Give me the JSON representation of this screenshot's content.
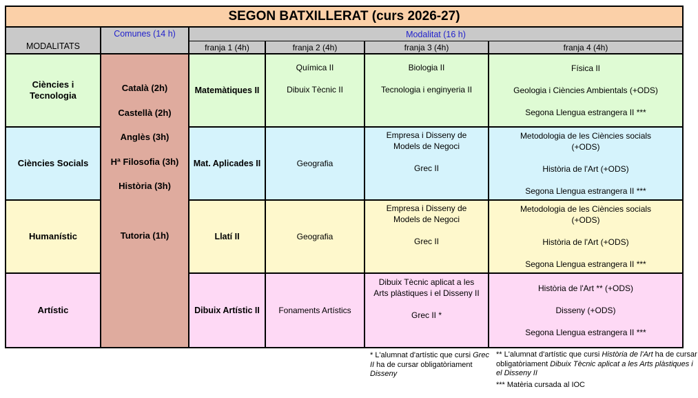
{
  "title": "SEGON BATXILLERAT (curs 2026-27)",
  "header": {
    "modalitats": "MODALITATS",
    "comunes": "Comunes (14 h)",
    "modalitat": "Modalitat (16 h)",
    "franges": [
      "franja 1 (4h)",
      "franja 2 (4h)",
      "franja 3 (4h)",
      "franja 4 (4h)"
    ]
  },
  "comunes_subjects": "Català (2h)\n\nCastellà (2h)\n\nAnglès (3h)\n\nHª Filosofia (3h)\n\nHistòria (3h)\n\n\n\nTutoria (1h)",
  "rows": [
    {
      "name": "Ciències i Tecnologia",
      "bg": "#DFFBD4",
      "franja1": "Matemàtiques II",
      "franja2": "Química II\n\nDibuix Tècnic II",
      "franja3": "Biologia II\n\nTecnologia i enginyeria II",
      "franja4": "Física II\n\nGeologia i Ciències Ambientals (+ODS)\n\nSegona Llengua estrangera II ***"
    },
    {
      "name": "Ciències Socials",
      "bg": "#D5F3FC",
      "franja1": "Mat. Aplicades II",
      "franja2": "Geografia",
      "franja3": "Empresa i Disseny de\nModels de Negoci\n\nGrec II",
      "franja4": "Metodologia de les Ciències socials\n(+ODS)\n\nHistòria de l'Art (+ODS)\n\nSegona Llengua estrangera II ***"
    },
    {
      "name": "Humanístic",
      "bg": "#FEF8CC",
      "franja1": "Llatí II",
      "franja2": "Geografia",
      "franja3": "Empresa i Disseny de\nModels de Negoci\n\nGrec II",
      "franja4": "Metodologia de les Ciències socials\n(+ODS)\n\nHistòria de l'Art (+ODS)\n\nSegona Llengua estrangera II ***"
    },
    {
      "name": "Artístic",
      "bg": "#FED9F5",
      "franja1": "Dibuix Artístic II",
      "franja2": "Fonaments Artístics",
      "franja3": "Dibuix Tècnic aplicat a les\nArts plàstiques i el Disseny II\n\nGrec II *",
      "franja4": "Història de l'Art ** (+ODS)\n\nDisseny (+ODS)\n\nSegona Llengua estrangera II ***"
    }
  ],
  "footnotes": {
    "fn1_segments": [
      {
        "t": "* L'alumnat d'artístic que cursi "
      },
      {
        "t": "Grec II",
        "i": true
      },
      {
        "t": " ha de cursar obligatòriament "
      },
      {
        "t": "Disseny",
        "i": true
      }
    ],
    "fn2_segments": [
      {
        "t": "** L'alumnat d'artístic que cursi "
      },
      {
        "t": "Història de l'Art",
        "i": true
      },
      {
        "t": " ha de cursar obligatòriament "
      },
      {
        "t": "Dibuix Tècnic aplicat a les Arts plàstiques i el Disseny II",
        "i": true
      }
    ],
    "fn3": "*** Matèria cursada al IOC"
  },
  "colors": {
    "title_bg": "#FBD0A8",
    "header_bg": "#C9C9C9",
    "comunes_bg": "#DFAB9E",
    "row_green": "#DFFBD4",
    "row_blue": "#D5F3FC",
    "row_yellow": "#FEF8CC",
    "row_pink": "#FED9F5",
    "accent_blue_text": "#2222CC",
    "border": "#000000"
  }
}
